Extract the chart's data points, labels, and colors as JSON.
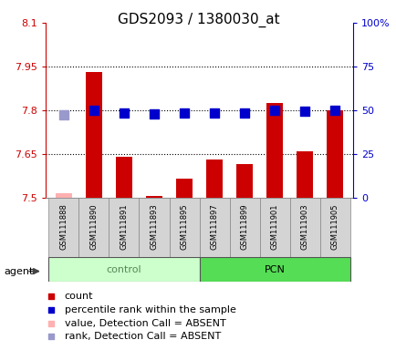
{
  "title": "GDS2093 / 1380030_at",
  "samples": [
    "GSM111888",
    "GSM111890",
    "GSM111891",
    "GSM111893",
    "GSM111895",
    "GSM111897",
    "GSM111899",
    "GSM111901",
    "GSM111903",
    "GSM111905"
  ],
  "groups": [
    "control",
    "control",
    "control",
    "control",
    "control",
    "PCN",
    "PCN",
    "PCN",
    "PCN",
    "PCN"
  ],
  "bar_values": [
    7.515,
    7.93,
    7.64,
    7.505,
    7.565,
    7.63,
    7.615,
    7.825,
    7.66,
    7.8
  ],
  "bar_absent": [
    true,
    false,
    false,
    false,
    false,
    false,
    false,
    false,
    false,
    false
  ],
  "rank_pct": [
    47.5,
    50.0,
    48.5,
    47.8,
    48.6,
    48.6,
    48.3,
    50.0,
    49.3,
    50.0
  ],
  "rank_absent": [
    true,
    false,
    false,
    false,
    false,
    false,
    false,
    false,
    false,
    false
  ],
  "ylim_left": [
    7.5,
    8.1
  ],
  "ylim_right": [
    0,
    100
  ],
  "yticks_left": [
    7.5,
    7.65,
    7.8,
    7.95,
    8.1
  ],
  "ytick_labels_left": [
    "7.5",
    "7.65",
    "7.8",
    "7.95",
    "8.1"
  ],
  "yticks_right": [
    0,
    25,
    50,
    75,
    100
  ],
  "ytick_labels_right": [
    "0",
    "25",
    "50",
    "75",
    "100%"
  ],
  "hlines": [
    7.65,
    7.8,
    7.95
  ],
  "bar_color_normal": "#cc0000",
  "bar_color_absent": "#ffb0b0",
  "rank_color_normal": "#0000cc",
  "rank_color_absent": "#9999cc",
  "bar_width": 0.55,
  "rank_marker_size": 45,
  "group_colors_control": "#ccffcc",
  "group_colors_pcn": "#55dd55",
  "group_label_color_control": "#558855",
  "left_axis_color": "#cc0000",
  "right_axis_color": "#0000cc",
  "title_fontsize": 11,
  "tick_fontsize": 8,
  "legend_fontsize": 8
}
